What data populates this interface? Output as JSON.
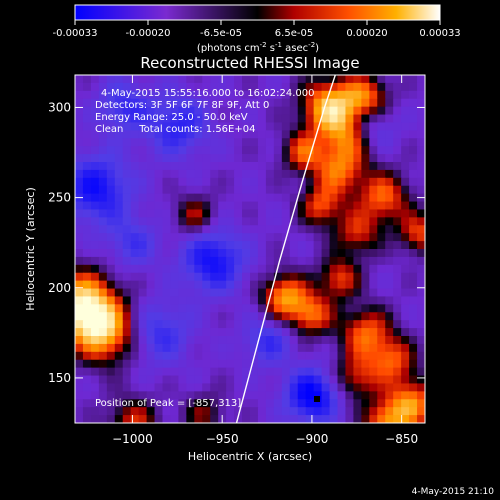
{
  "colorbar": {
    "ticks": [
      "-0.00033",
      "-0.00020",
      "-6.5e-05",
      "6.5e-05",
      "0.00020",
      "0.00033"
    ],
    "unit_main": "(photons cm",
    "unit_sup1": "-2",
    "unit_mid": " s",
    "unit_sup2": "-1",
    "unit_mid2": " asec",
    "unit_sup3": "-2",
    "unit_end": ")"
  },
  "chart_data": {
    "type": "heatmap",
    "title": "Reconstructed RHESSI Image",
    "xlabel": "Heliocentric X (arcsec)",
    "ylabel": "Heliocentric Y (arcsec)",
    "xlim": [
      -1032,
      -837
    ],
    "ylim": [
      125,
      318
    ],
    "x_ticks": [
      -1000,
      -950,
      -900,
      -850
    ],
    "x_tick_labels": [
      "−1000",
      "−950",
      "−900",
      "−850"
    ],
    "y_ticks": [
      150,
      200,
      250,
      300
    ],
    "y_tick_labels": [
      "150",
      "200",
      "250",
      "300"
    ],
    "grid": false,
    "colorscale": [
      "#0000ff",
      "#7a2ad0",
      "#000000",
      "#ff4000",
      "#ffa000",
      "#ffffff"
    ],
    "value_range": [
      -0.00033,
      0.00033
    ],
    "annotations": [
      "4-May-2015 15:55:16.000 to 16:02:24.000",
      "Detectors: 3F 5F 6F 7F 8F 9F, Att 0",
      "Energy Range: 25.0 - 50.0 keV",
      "Clean     Total counts: 1.56E+04"
    ],
    "peak_label": "Position of Peak = [-857,313]",
    "peak": [
      -857,
      313
    ],
    "limb_curve": [
      [
        -942,
        125
      ],
      [
        -930,
        170
      ],
      [
        -918,
        215
      ],
      [
        -905,
        260
      ],
      [
        -893,
        300
      ],
      [
        -887,
        318
      ]
    ]
  },
  "footer": {
    "timestamp": "4-May-2015 21:10"
  }
}
